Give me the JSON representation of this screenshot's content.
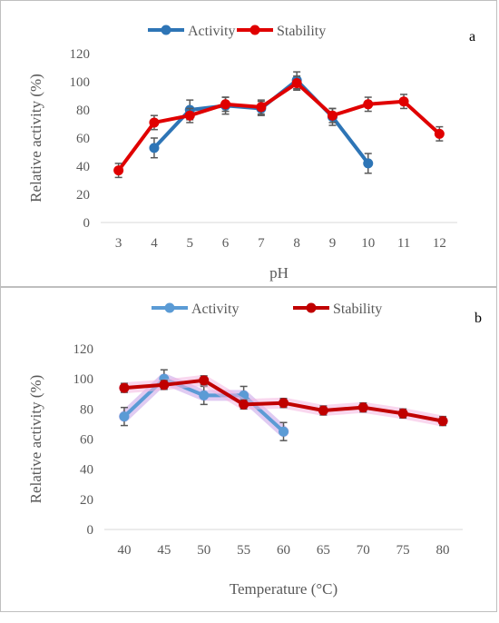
{
  "chart_data": [
    {
      "type": "line",
      "panel_label": "a",
      "xlabel": "pH",
      "ylabel": "Relative activity (%)",
      "categories": [
        "3",
        "4",
        "5",
        "6",
        "7",
        "8",
        "9",
        "10",
        "11",
        "12"
      ],
      "ylim": [
        0,
        120
      ],
      "yticks": [
        "0",
        "20",
        "40",
        "60",
        "80",
        "100",
        "120"
      ],
      "legend_position": "top",
      "error_bars": true,
      "series": [
        {
          "name": "Activity",
          "color": "#2e75b6",
          "values": [
            null,
            53,
            80,
            83,
            81,
            101,
            75,
            42,
            null,
            null
          ],
          "errors": [
            null,
            7,
            7,
            6,
            5,
            6,
            6,
            7,
            null,
            null
          ]
        },
        {
          "name": "Stability",
          "color": "#e00000",
          "values": [
            37,
            71,
            76,
            84,
            82,
            99,
            76,
            84,
            86,
            63
          ],
          "errors": [
            5,
            5,
            5,
            5,
            5,
            5,
            5,
            5,
            5,
            5
          ]
        }
      ]
    },
    {
      "type": "line",
      "panel_label": "b",
      "xlabel": "Temperature (°C)",
      "ylabel": "Relative activity (%)",
      "categories": [
        "40",
        "45",
        "50",
        "55",
        "60",
        "65",
        "70",
        "75",
        "80"
      ],
      "ylim": [
        0,
        120
      ],
      "yticks": [
        "0",
        "20",
        "40",
        "60",
        "80",
        "100",
        "120"
      ],
      "legend_position": "top",
      "error_bars": true,
      "series": [
        {
          "name": "Activity",
          "color": "#5b9bd5",
          "values": [
            75,
            100,
            89,
            89,
            65,
            null,
            null,
            null,
            null
          ],
          "errors": [
            6,
            6,
            6,
            6,
            6,
            null,
            null,
            null,
            null
          ]
        },
        {
          "name": "Stability",
          "color": "#c00000",
          "values": [
            94,
            96,
            99,
            83,
            84,
            79,
            81,
            77,
            72
          ],
          "errors": [
            3,
            3,
            3,
            3,
            3,
            3,
            3,
            3,
            3
          ]
        }
      ]
    }
  ]
}
